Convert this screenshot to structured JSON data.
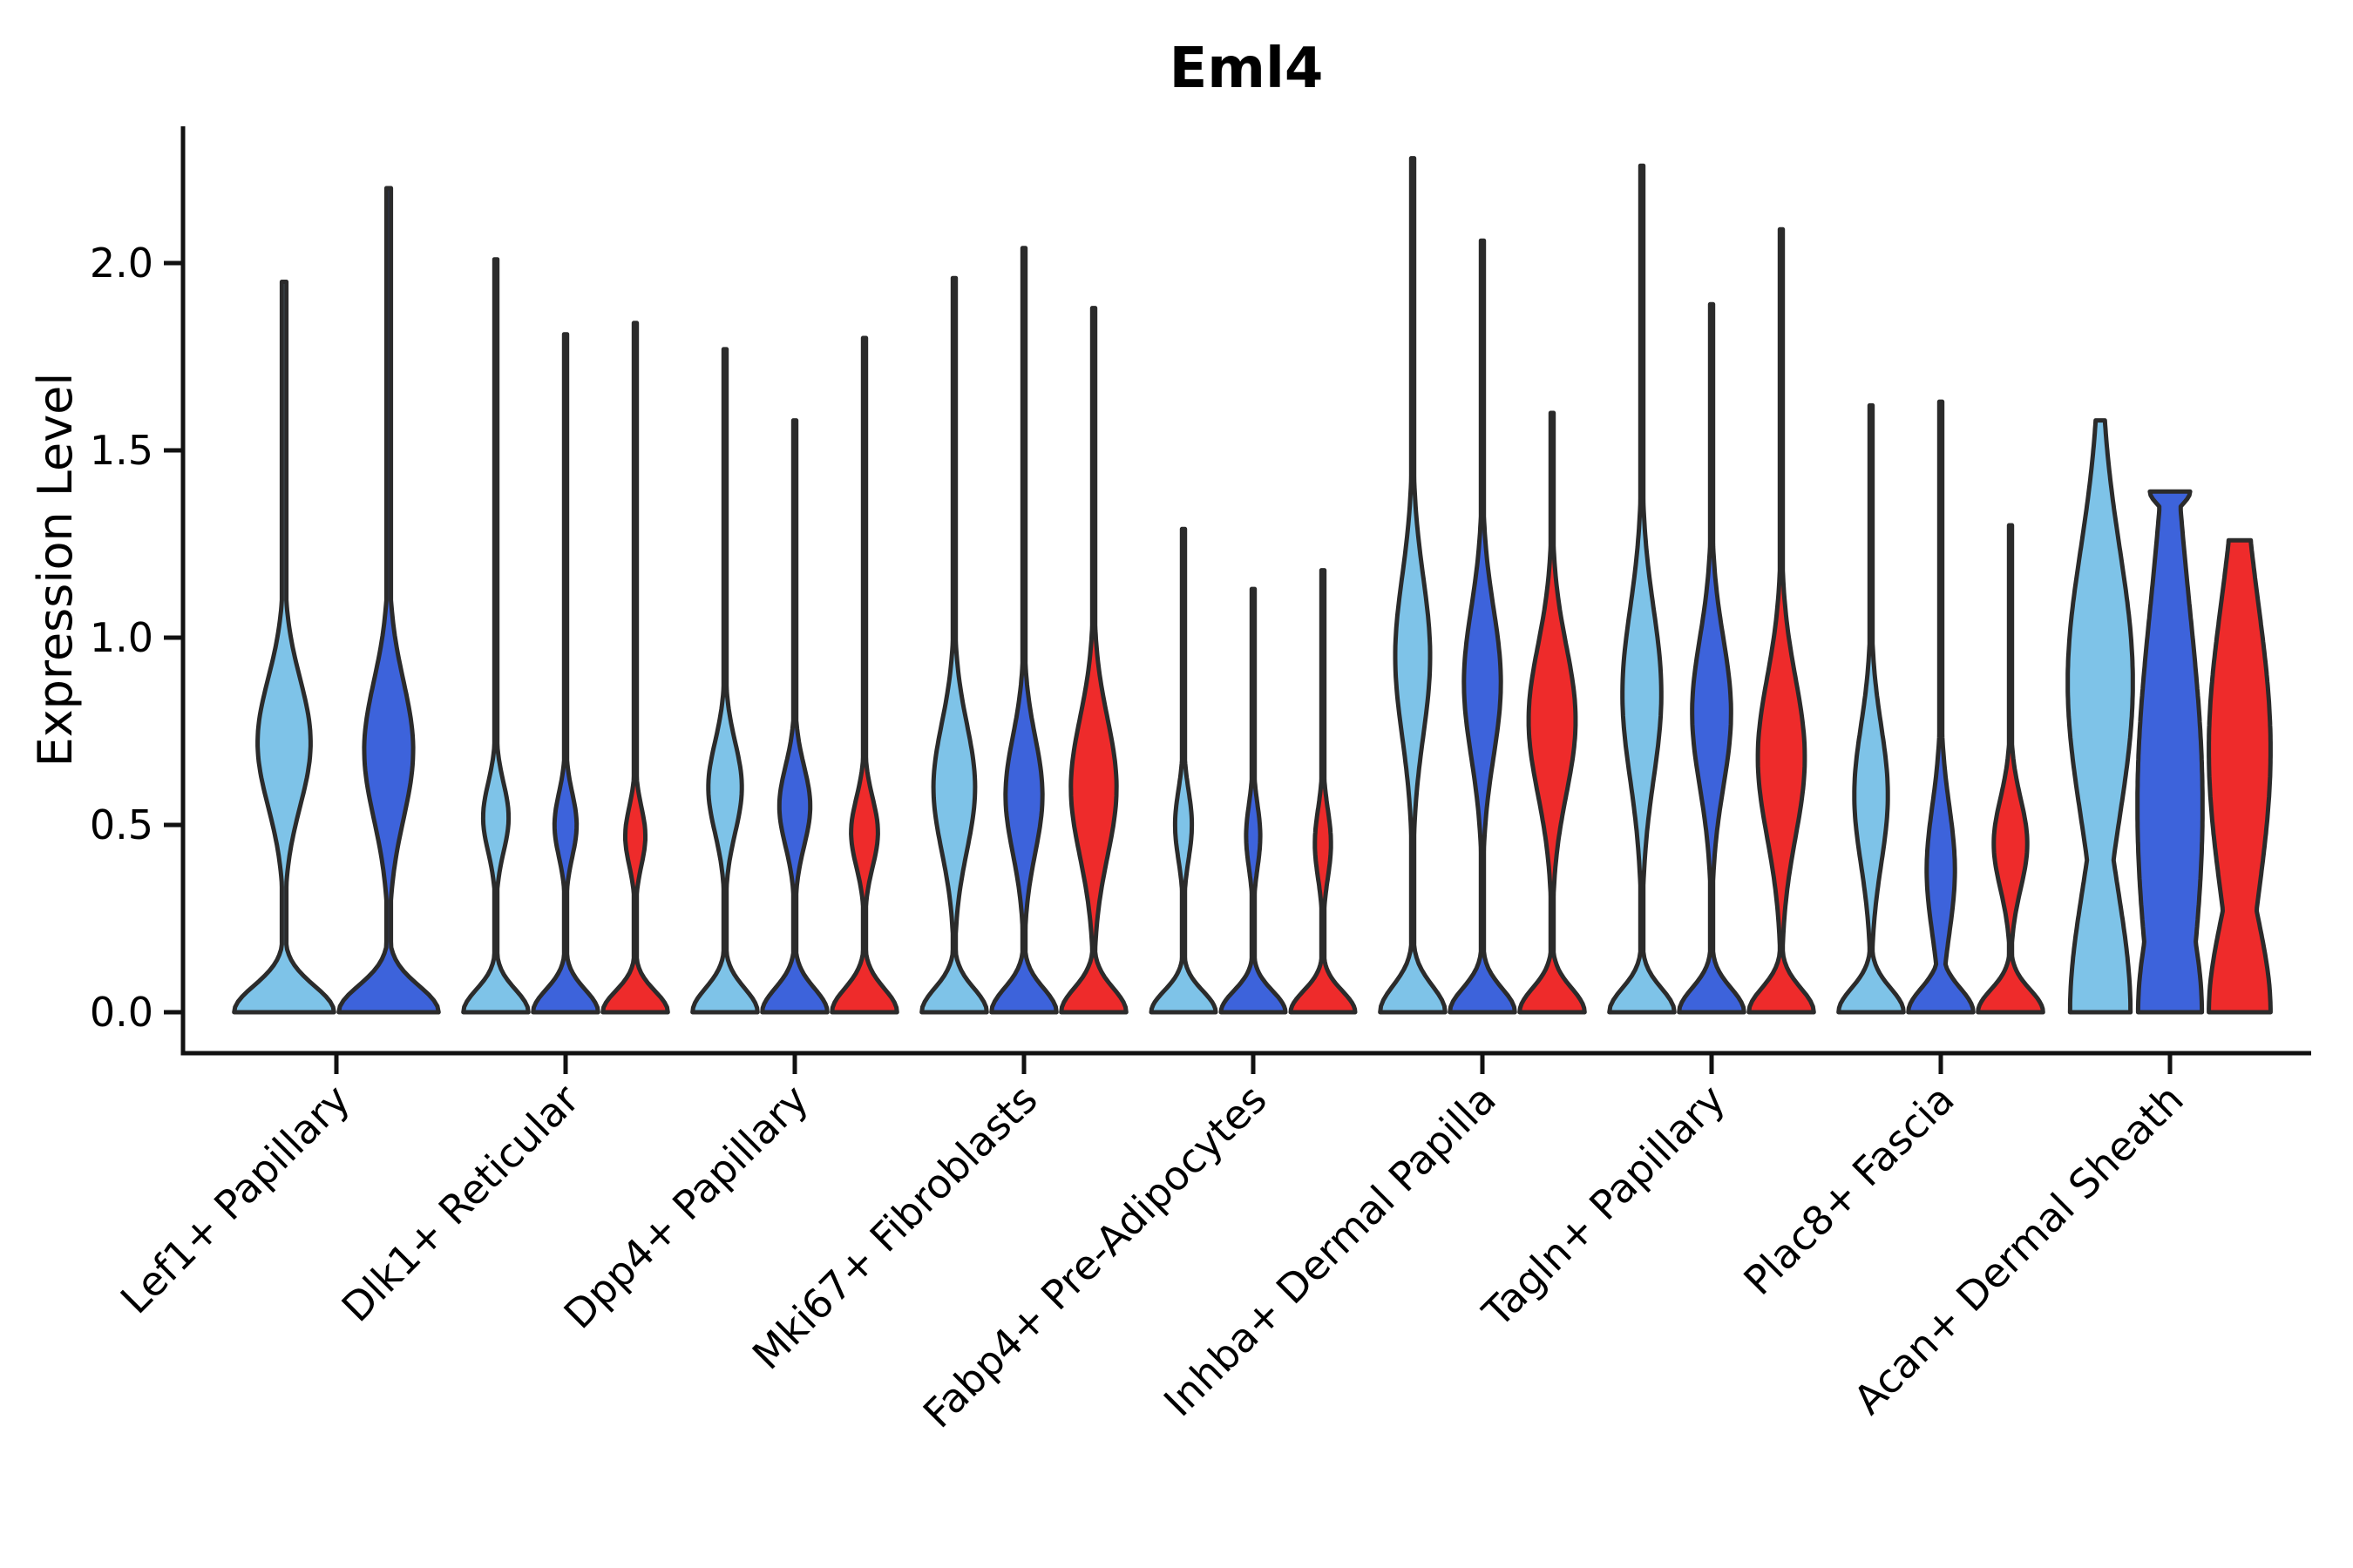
{
  "chart_data": {
    "type": "violin",
    "title": "Eml4",
    "ylabel": "Expression Level",
    "xlabel": "",
    "ylim": [
      0,
      2.37
    ],
    "yticks": [
      "0.0",
      "0.5",
      "1.0",
      "1.5",
      "2.0"
    ],
    "ytick_values": [
      0.0,
      0.5,
      1.0,
      1.5,
      2.0
    ],
    "grid": false,
    "legend": "none",
    "categories": [
      "Lef1+ Papillary",
      "Dlk1+ Reticular",
      "Dpp4+ Papillary",
      "Mki67+ Fibroblasts",
      "Fabp4+ Pre-Adipocytes",
      "Inhba+ Dermal Papilla",
      "Tagln+ Papillary",
      "Plac8+ Fascia",
      "Acan+ Dermal Sheath"
    ],
    "series_keys": [
      "blue-light",
      "blue-dark",
      "red"
    ],
    "series_colors": [
      "#7EC3E8",
      "#3D63DB",
      "#EE2B2B"
    ],
    "outline_color": "#2B2B2B",
    "axis_color": "#111111",
    "violins": [
      {
        "category": "Lef1+ Papillary",
        "series": "blue-light",
        "max": 1.95,
        "bulge_center": 0.72,
        "bulge_sigma": 0.24,
        "bulge_width": 0.52,
        "base_sigma": 0.1,
        "base_width": 0.98,
        "top_width": 0.03
      },
      {
        "category": "Lef1+ Papillary",
        "series": "blue-dark",
        "max": 2.2,
        "bulge_center": 0.7,
        "bulge_sigma": 0.26,
        "bulge_width": 0.48,
        "base_sigma": 0.1,
        "base_width": 0.98,
        "top_width": 0.03
      },
      {
        "category": "Dlk1+ Reticular",
        "series": "blue-light",
        "max": 2.01,
        "bulge_center": 0.52,
        "bulge_sigma": 0.13,
        "bulge_width": 0.38,
        "base_sigma": 0.085,
        "base_width": 0.97,
        "top_width": 0.03
      },
      {
        "category": "Dlk1+ Reticular",
        "series": "blue-dark",
        "max": 1.81,
        "bulge_center": 0.5,
        "bulge_sigma": 0.12,
        "bulge_width": 0.33,
        "base_sigma": 0.085,
        "base_width": 0.97,
        "top_width": 0.03
      },
      {
        "category": "Dlk1+ Reticular",
        "series": "red",
        "max": 1.84,
        "bulge_center": 0.47,
        "bulge_sigma": 0.11,
        "bulge_width": 0.3,
        "base_sigma": 0.08,
        "base_width": 0.97,
        "top_width": 0.03
      },
      {
        "category": "Dpp4+ Papillary",
        "series": "blue-light",
        "max": 1.77,
        "bulge_center": 0.6,
        "bulge_sigma": 0.17,
        "bulge_width": 0.5,
        "base_sigma": 0.09,
        "base_width": 0.97,
        "top_width": 0.03
      },
      {
        "category": "Dpp4+ Papillary",
        "series": "blue-dark",
        "max": 1.58,
        "bulge_center": 0.55,
        "bulge_sigma": 0.15,
        "bulge_width": 0.46,
        "base_sigma": 0.09,
        "base_width": 0.97,
        "top_width": 0.03
      },
      {
        "category": "Dpp4+ Papillary",
        "series": "red",
        "max": 1.8,
        "bulge_center": 0.48,
        "bulge_sigma": 0.13,
        "bulge_width": 0.4,
        "base_sigma": 0.09,
        "base_width": 0.97,
        "top_width": 0.03
      },
      {
        "category": "Mki67+ Fibroblasts",
        "series": "blue-light",
        "max": 1.96,
        "bulge_center": 0.6,
        "bulge_sigma": 0.24,
        "bulge_width": 0.62,
        "base_sigma": 0.09,
        "base_width": 0.97,
        "top_width": 0.03
      },
      {
        "category": "Mki67+ Fibroblasts",
        "series": "blue-dark",
        "max": 2.04,
        "bulge_center": 0.58,
        "bulge_sigma": 0.22,
        "bulge_width": 0.55,
        "base_sigma": 0.09,
        "base_width": 0.97,
        "top_width": 0.03
      },
      {
        "category": "Mki67+ Fibroblasts",
        "series": "red",
        "max": 1.88,
        "bulge_center": 0.6,
        "bulge_sigma": 0.26,
        "bulge_width": 0.68,
        "base_sigma": 0.09,
        "base_width": 0.97,
        "top_width": 0.03
      },
      {
        "category": "Fabp4+ Pre-Adipocytes",
        "series": "blue-light",
        "max": 1.29,
        "bulge_center": 0.5,
        "bulge_sigma": 0.13,
        "bulge_width": 0.25,
        "base_sigma": 0.08,
        "base_width": 0.96,
        "top_width": 0.03
      },
      {
        "category": "Fabp4+ Pre-Adipocytes",
        "series": "blue-dark",
        "max": 1.13,
        "bulge_center": 0.47,
        "bulge_sigma": 0.12,
        "bulge_width": 0.21,
        "base_sigma": 0.08,
        "base_width": 0.96,
        "top_width": 0.03
      },
      {
        "category": "Fabp4+ Pre-Adipocytes",
        "series": "red",
        "max": 1.18,
        "bulge_center": 0.45,
        "bulge_sigma": 0.13,
        "bulge_width": 0.24,
        "base_sigma": 0.08,
        "base_width": 0.96,
        "top_width": 0.03
      },
      {
        "category": "Inhba+ Dermal Papilla",
        "series": "blue-light",
        "max": 2.28,
        "bulge_center": 0.95,
        "bulge_sigma": 0.3,
        "bulge_width": 0.52,
        "base_sigma": 0.1,
        "base_width": 0.97,
        "top_width": 0.03
      },
      {
        "category": "Inhba+ Dermal Papilla",
        "series": "blue-dark",
        "max": 2.06,
        "bulge_center": 0.88,
        "bulge_sigma": 0.28,
        "bulge_width": 0.55,
        "base_sigma": 0.09,
        "base_width": 0.97,
        "top_width": 0.03
      },
      {
        "category": "Inhba+ Dermal Papilla",
        "series": "red",
        "max": 1.6,
        "bulge_center": 0.78,
        "bulge_sigma": 0.28,
        "bulge_width": 0.7,
        "base_sigma": 0.09,
        "base_width": 0.97,
        "top_width": 0.03
      },
      {
        "category": "Tagln+ Papillary",
        "series": "blue-light",
        "max": 2.26,
        "bulge_center": 0.85,
        "bulge_sigma": 0.32,
        "bulge_width": 0.58,
        "base_sigma": 0.09,
        "base_width": 0.97,
        "top_width": 0.03
      },
      {
        "category": "Tagln+ Papillary",
        "series": "blue-dark",
        "max": 1.89,
        "bulge_center": 0.8,
        "bulge_sigma": 0.28,
        "bulge_width": 0.58,
        "base_sigma": 0.09,
        "base_width": 0.97,
        "top_width": 0.03
      },
      {
        "category": "Tagln+ Papillary",
        "series": "red",
        "max": 2.09,
        "bulge_center": 0.68,
        "bulge_sigma": 0.3,
        "bulge_width": 0.7,
        "base_sigma": 0.09,
        "base_width": 0.97,
        "top_width": 0.03
      },
      {
        "category": "Plac8+ Fascia",
        "series": "blue-light",
        "max": 1.62,
        "bulge_center": 0.58,
        "bulge_sigma": 0.26,
        "bulge_width": 0.5,
        "base_sigma": 0.09,
        "base_width": 0.97,
        "top_width": 0.03
      },
      {
        "category": "Plac8+ Fascia",
        "series": "blue-dark",
        "max": 1.63,
        "bulge_center": 0.38,
        "bulge_sigma": 0.24,
        "bulge_width": 0.42,
        "base_sigma": 0.09,
        "base_width": 0.97,
        "top_width": 0.03
      },
      {
        "category": "Plac8+ Fascia",
        "series": "red",
        "max": 1.3,
        "bulge_center": 0.45,
        "bulge_sigma": 0.17,
        "bulge_width": 0.5,
        "base_sigma": 0.085,
        "base_width": 0.97,
        "top_width": 0.03
      },
      {
        "category": "Acan+ Dermal Sheath",
        "series": "blue-light",
        "max": 1.58,
        "bulge_center": 0.88,
        "bulge_sigma": 0.5,
        "bulge_width": 0.97,
        "base_sigma": 0.45,
        "base_width": 0.9,
        "top_width": 0.05
      },
      {
        "category": "Acan+ Dermal Sheath",
        "series": "blue-dark",
        "max": 1.39,
        "bulge_center": 0.55,
        "bulge_sigma": 0.75,
        "bulge_width": 0.97,
        "base_sigma": 0.4,
        "base_width": 0.95,
        "top_width": 0.6
      },
      {
        "category": "Acan+ Dermal Sheath",
        "series": "red",
        "max": 1.26,
        "bulge_center": 0.7,
        "bulge_sigma": 0.55,
        "bulge_width": 0.92,
        "base_sigma": 0.35,
        "base_width": 0.92,
        "top_width": 0.33
      }
    ]
  }
}
